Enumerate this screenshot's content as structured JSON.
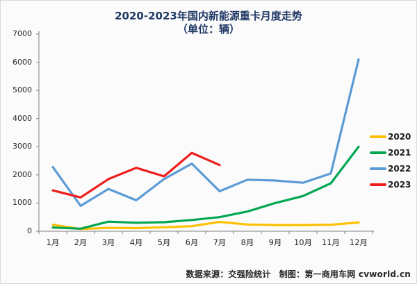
{
  "title": {
    "line1": "2020-2023年国内新能源重卡月度走势",
    "line2": "（单位：辆）"
  },
  "colors": {
    "background": "#fbfbfb",
    "border": "#d9d9d9",
    "title": "#1f3864",
    "axis": "#808080",
    "tick_label": "#262626",
    "footer": "#262626"
  },
  "chart_data": {
    "type": "line",
    "title": "2020-2023年国内新能源重卡月度走势（单位：辆）",
    "categories": [
      "1月",
      "2月",
      "3月",
      "4月",
      "5月",
      "6月",
      "7月",
      "8月",
      "9月",
      "10月",
      "11月",
      "12月"
    ],
    "series": [
      {
        "name": "2020",
        "color": "#FFC000",
        "values": [
          230,
          80,
          120,
          110,
          140,
          180,
          330,
          240,
          220,
          220,
          230,
          310
        ]
      },
      {
        "name": "2021",
        "color": "#00A651",
        "values": [
          130,
          90,
          340,
          300,
          320,
          400,
          500,
          700,
          1000,
          1250,
          1700,
          3000
        ]
      },
      {
        "name": "2022",
        "color": "#5B9BD5",
        "values": [
          2280,
          900,
          1500,
          1100,
          1850,
          2400,
          1420,
          1830,
          1800,
          1720,
          2050,
          6100
        ]
      },
      {
        "name": "2023",
        "color": "#EE1C1C",
        "values": [
          1450,
          1200,
          1850,
          2250,
          1950,
          2780,
          2350
        ]
      }
    ],
    "ylim": [
      0,
      7000
    ],
    "yticks": [
      0,
      1000,
      2000,
      3000,
      4000,
      5000,
      6000,
      7000
    ],
    "grid": false,
    "legend_position": "right"
  },
  "footer": {
    "text": "数据来源：交强险统计　制图：第一商用车网 cvworld.cn"
  }
}
